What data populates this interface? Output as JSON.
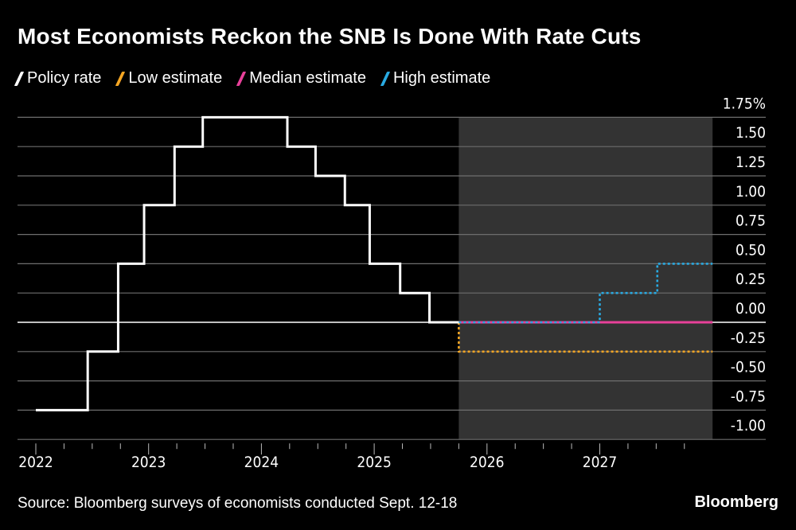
{
  "chart_data": {
    "type": "line",
    "title": "Most Economists Reckon the SNB Is Done With Rate Cuts",
    "xlabel": "",
    "ylabel": "",
    "y_unit": "%",
    "ylim": [
      -1.0,
      1.75
    ],
    "xlim": [
      2022.0,
      2028.0
    ],
    "y_ticks": [
      "1.75%",
      "1.50",
      "1.25",
      "1.00",
      "0.75",
      "0.50",
      "0.25",
      "0.00",
      "-0.25",
      "-0.50",
      "-0.75",
      "-1.00"
    ],
    "y_tick_values": [
      1.75,
      1.5,
      1.25,
      1.0,
      0.75,
      0.5,
      0.25,
      0.0,
      -0.25,
      -0.5,
      -0.75,
      -1.0
    ],
    "x_ticks": [
      "2022",
      "2023",
      "2024",
      "2025",
      "2026",
      "2027"
    ],
    "x_tick_values": [
      2022,
      2023,
      2024,
      2025,
      2026,
      2027
    ],
    "grid": true,
    "forecast_shade": [
      2025.75,
      2028.0
    ],
    "legend_position": "top-left",
    "series": [
      {
        "name": "Policy rate",
        "color": "#ffffff",
        "style": "solid",
        "step": true,
        "x": [
          2022.0,
          2022.46,
          2022.73,
          2022.96,
          2023.23,
          2023.48,
          2024.23,
          2024.48,
          2024.74,
          2024.96,
          2025.23,
          2025.49,
          2025.75
        ],
        "y": [
          -0.75,
          -0.25,
          0.5,
          1.0,
          1.5,
          1.75,
          1.5,
          1.25,
          1.0,
          0.5,
          0.25,
          0.0,
          0.0
        ]
      },
      {
        "name": "Low estimate",
        "color": "#f5a623",
        "style": "dotted",
        "step": true,
        "x": [
          2025.75,
          2025.75,
          2028.0
        ],
        "y": [
          0.0,
          -0.25,
          -0.25
        ]
      },
      {
        "name": "Median estimate",
        "color": "#e8409a",
        "style": "solid",
        "step": true,
        "x": [
          2025.75,
          2028.0
        ],
        "y": [
          0.0,
          0.0
        ]
      },
      {
        "name": "High estimate",
        "color": "#29aae2",
        "style": "dotted",
        "step": true,
        "x": [
          2025.75,
          2027.0,
          2027.51,
          2028.0
        ],
        "y": [
          0.0,
          0.25,
          0.5,
          0.5
        ]
      }
    ]
  },
  "footer": {
    "source": "Source: Bloomberg surveys of economists conducted Sept. 12-18",
    "brand": "Bloomberg"
  }
}
